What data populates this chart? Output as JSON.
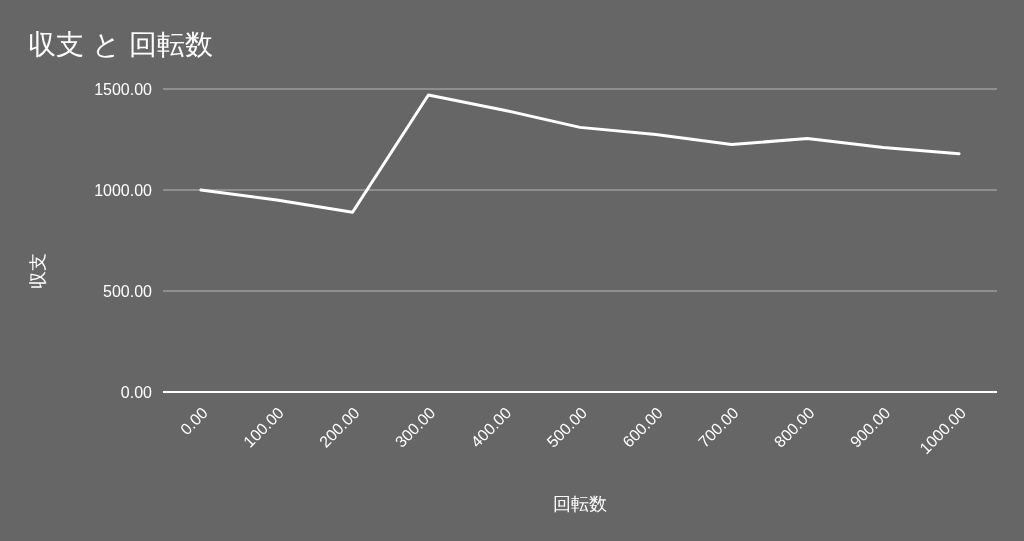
{
  "chart_data": {
    "type": "line",
    "title": "収支 と 回転数",
    "xlabel": "回転数",
    "ylabel": "収支",
    "categories": [
      "0.00",
      "100.00",
      "200.00",
      "300.00",
      "400.00",
      "500.00",
      "600.00",
      "700.00",
      "800.00",
      "900.00",
      "1000.00"
    ],
    "series": [
      {
        "color": "#ffffff",
        "values": [
          1000,
          950,
          890,
          1470,
          1395,
          1310,
          1275,
          1225,
          1255,
          1210,
          1180
        ]
      }
    ],
    "ylim": [
      0,
      1500
    ],
    "yticks": [
      {
        "value": 0,
        "label": "0.00"
      },
      {
        "value": 500,
        "label": "500.00"
      },
      {
        "value": 1000,
        "label": "1000.00"
      },
      {
        "value": 1500,
        "label": "1500.00"
      }
    ],
    "grid": "y",
    "marker": "none",
    "line_style": "solid"
  }
}
